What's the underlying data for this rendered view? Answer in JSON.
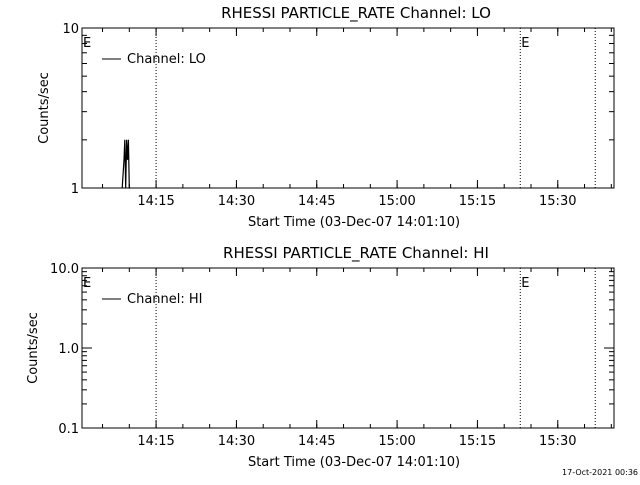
{
  "chart_data": [
    {
      "type": "line",
      "title": "RHESSI PARTICLE_RATE Channel: LO",
      "xlabel": "Start Time (03-Dec-07 14:01:10)",
      "ylabel": "Counts/sec",
      "yscale": "log",
      "ylim": [
        1,
        10
      ],
      "xlim": [
        "14:01:10",
        "15:40:30"
      ],
      "x_tick_labels": [
        "14:15",
        "14:30",
        "14:45",
        "15:00",
        "15:15",
        "15:30"
      ],
      "y_tick_labels": [
        "1",
        "10"
      ],
      "legend": {
        "entries": [
          "Channel: LO"
        ],
        "placement": "top-left"
      },
      "marker_label": "E",
      "event_lines": [
        "14:15",
        "15:23",
        "15:37"
      ],
      "series": [
        {
          "name": "Channel: LO",
          "x": [
            "14:08:40",
            "14:09:00",
            "14:09:10",
            "14:09:20",
            "14:09:30",
            "14:09:40",
            "14:09:50",
            "14:10:00",
            "14:10:10"
          ],
          "y": [
            1,
            1.5,
            2,
            1,
            2,
            1.5,
            2,
            1,
            1
          ]
        }
      ]
    },
    {
      "type": "line",
      "title": "RHESSI PARTICLE_RATE Channel: HI",
      "xlabel": "Start Time (03-Dec-07 14:01:10)",
      "ylabel": "Counts/sec",
      "yscale": "log",
      "ylim": [
        0.1,
        10
      ],
      "xlim": [
        "14:01:10",
        "15:40:30"
      ],
      "x_tick_labels": [
        "14:15",
        "14:30",
        "14:45",
        "15:00",
        "15:15",
        "15:30"
      ],
      "y_tick_labels": [
        "0.1",
        "1.0",
        "10.0"
      ],
      "legend": {
        "entries": [
          "Channel: HI"
        ],
        "placement": "top-left"
      },
      "marker_label": "E",
      "event_lines": [
        "14:15",
        "15:23",
        "15:37"
      ],
      "series": [
        {
          "name": "Channel: HI",
          "x": [],
          "y": []
        }
      ]
    }
  ],
  "footer": {
    "timestamp": "17-Oct-2021 00:36"
  }
}
